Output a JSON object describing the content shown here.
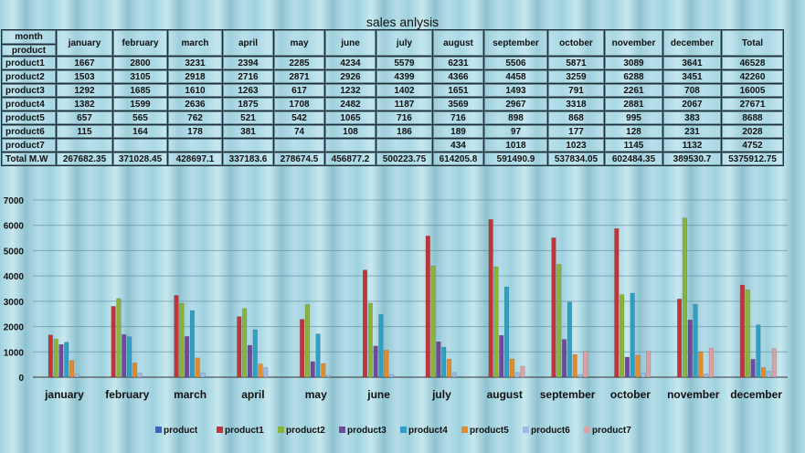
{
  "sheet": {
    "title": "sales anlysis",
    "header_month": "month",
    "header_product": "product",
    "header_total": "Total"
  },
  "table": {
    "months": [
      "january",
      "february",
      "march",
      "april",
      "may",
      "june",
      "july",
      "august",
      "september",
      "october",
      "november",
      "december"
    ],
    "rows": [
      {
        "label": "product1",
        "values": [
          "1667",
          "2800",
          "3231",
          "2394",
          "2285",
          "4234",
          "5579",
          "6231",
          "5506",
          "5871",
          "3089",
          "3641"
        ],
        "total": "46528"
      },
      {
        "label": "product2",
        "values": [
          "1503",
          "3105",
          "2918",
          "2716",
          "2871",
          "2926",
          "4399",
          "4366",
          "4458",
          "3259",
          "6288",
          "3451"
        ],
        "total": "42260"
      },
      {
        "label": "product3",
        "values": [
          "1292",
          "1685",
          "1610",
          "1263",
          "617",
          "1232",
          "1402",
          "1651",
          "1493",
          "791",
          "2261",
          "708"
        ],
        "total": "16005"
      },
      {
        "label": "product4",
        "values": [
          "1382",
          "1599",
          "2636",
          "1875",
          "1708",
          "2482",
          "1187",
          "3569",
          "2967",
          "3318",
          "2881",
          "2067"
        ],
        "total": "27671"
      },
      {
        "label": "product5",
        "values": [
          "657",
          "565",
          "762",
          "521",
          "542",
          "1065",
          "716",
          "716",
          "898",
          "868",
          "995",
          "383"
        ],
        "total": "8688"
      },
      {
        "label": "product6",
        "values": [
          "115",
          "164",
          "178",
          "381",
          "74",
          "108",
          "186",
          "189",
          "97",
          "177",
          "128",
          "231"
        ],
        "total": "2028"
      },
      {
        "label": "product7",
        "values": [
          "",
          "",
          "",
          "",
          "",
          "",
          "",
          "434",
          "1018",
          "1023",
          "1145",
          "1132"
        ],
        "total": "4752"
      }
    ],
    "total_row": {
      "label": "Total M.W",
      "values": [
        "267682.35",
        "371028.45",
        "428697.1",
        "337183.6",
        "278674.5",
        "456877.2",
        "500223.75",
        "614205.8",
        "591490.9",
        "537834.05",
        "602484.35",
        "389530.7"
      ],
      "total": "5375912.75"
    }
  },
  "chart_data": {
    "type": "bar",
    "title": "",
    "xlabel": "",
    "ylabel": "",
    "ylim": [
      0,
      7000
    ],
    "yticks": [
      0,
      1000,
      2000,
      3000,
      4000,
      5000,
      6000,
      7000
    ],
    "grid": true,
    "legend": "bottom",
    "categories": [
      "january",
      "february",
      "march",
      "april",
      "may",
      "june",
      "july",
      "august",
      "september",
      "october",
      "november",
      "december"
    ],
    "series": [
      {
        "name": "product",
        "color": "#3b63b8",
        "values": [
          0,
          0,
          0,
          0,
          0,
          0,
          0,
          0,
          0,
          0,
          0,
          0
        ]
      },
      {
        "name": "product1",
        "color": "#c0353a",
        "values": [
          1667,
          2800,
          3231,
          2394,
          2285,
          4234,
          5579,
          6231,
          5506,
          5871,
          3089,
          3641
        ]
      },
      {
        "name": "product2",
        "color": "#8bb33a",
        "values": [
          1503,
          3105,
          2918,
          2716,
          2871,
          2926,
          4399,
          4366,
          4458,
          3259,
          6288,
          3451
        ]
      },
      {
        "name": "product3",
        "color": "#6f4a9c",
        "values": [
          1292,
          1685,
          1610,
          1263,
          617,
          1232,
          1402,
          1651,
          1493,
          791,
          2261,
          708
        ]
      },
      {
        "name": "product4",
        "color": "#2f9fc4",
        "values": [
          1382,
          1599,
          2636,
          1875,
          1708,
          2482,
          1187,
          3569,
          2967,
          3318,
          2881,
          2067
        ]
      },
      {
        "name": "product5",
        "color": "#e58a2a",
        "values": [
          657,
          565,
          762,
          521,
          542,
          1065,
          716,
          716,
          898,
          868,
          995,
          383
        ]
      },
      {
        "name": "product6",
        "color": "#9fb8df",
        "values": [
          115,
          164,
          178,
          381,
          74,
          108,
          186,
          189,
          97,
          177,
          128,
          231
        ]
      },
      {
        "name": "product7",
        "color": "#e0a0a3",
        "values": [
          0,
          0,
          0,
          0,
          0,
          0,
          0,
          434,
          1018,
          1023,
          1145,
          1132
        ]
      }
    ]
  }
}
